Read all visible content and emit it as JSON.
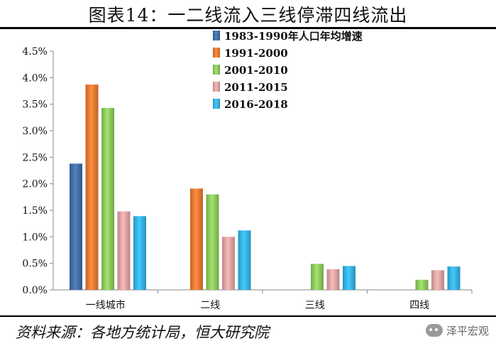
{
  "title": "图表14：一二线流入三线停滞四线流出",
  "source": "资料来源：各地方统计局，恒大研究院",
  "watermark": {
    "text": "泽平宏观",
    "icon": "wechat-icon"
  },
  "chart_data": {
    "type": "bar",
    "categories": [
      "一线城市",
      "二线",
      "三线",
      "四线"
    ],
    "series": [
      {
        "name": "1983-1990年人口年均增速",
        "color": "#3d6fab",
        "values": [
          2.38,
          null,
          null,
          null
        ]
      },
      {
        "name": "1991-2000",
        "color": "#ef7a2c",
        "values": [
          3.87,
          1.91,
          null,
          null
        ]
      },
      {
        "name": "2001-2010",
        "color": "#8fd05a",
        "values": [
          3.43,
          1.8,
          0.49,
          0.19
        ]
      },
      {
        "name": "2011-2015",
        "color": "#e5a7a7",
        "values": [
          1.48,
          1.0,
          0.39,
          0.37
        ]
      },
      {
        "name": "2016-2018",
        "color": "#2fb6ec",
        "values": [
          1.39,
          1.12,
          0.45,
          0.44
        ]
      }
    ],
    "yticks": [
      "0.0%",
      "0.5%",
      "1.0%",
      "1.5%",
      "2.0%",
      "2.5%",
      "3.0%",
      "3.5%",
      "4.0%",
      "4.5%"
    ],
    "ylim": [
      0,
      4.5
    ],
    "legend_position": "top-center",
    "grid": false
  }
}
